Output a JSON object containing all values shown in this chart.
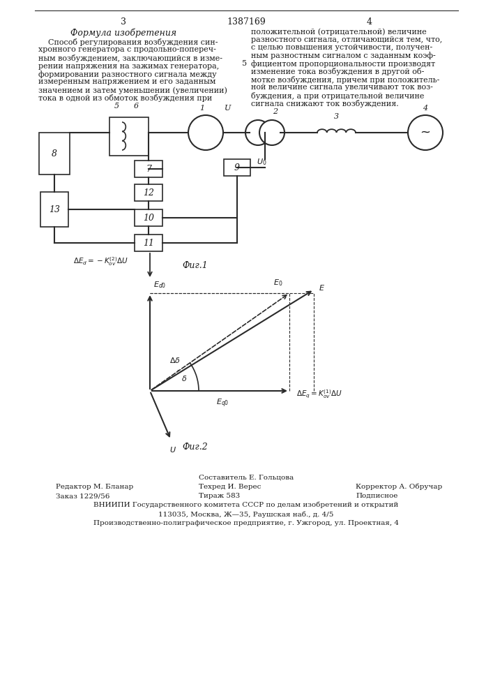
{
  "page_num_left": "3",
  "page_num_center": "1387169",
  "page_num_right": "4",
  "title_left": "Формула изобретения",
  "left_col_lines": [
    "    Способ регулирования возбуждения син-",
    "хронного генератора с продольно-попереч-",
    "ным возбуждением, заключающийся в изме-",
    "рении напряжения на зажимах генератора,",
    "формировании разностного сигнала между",
    "измеренным напряжением и его заданным",
    "значением и затем уменьшении (увеличении)",
    "тока в одной из обмоток возбуждения при"
  ],
  "right_col_lines": [
    "положительной (отрицательной) величине",
    "разностного сигнала, отличающийся тем, что,",
    "с целью повышения устойчивости, получен-",
    "ным разностным сигналом с заданным коэф-",
    "фициентом пропорциональности производят",
    "изменение тока возбуждения в другой об-",
    "мотке возбуждения, причем при положитель-",
    "ной величине сигнала увеличивают ток воз-",
    "буждения, а при отрицательной величине",
    "сигнала снижают ток возбуждения."
  ],
  "num5_line_index": 4,
  "fig1_label": "Фиг.1",
  "fig2_label": "Фиг.2",
  "footer_line1_center": "Составитель Е. Гольцова",
  "footer_line1_left": "Редактор М. Бланар",
  "footer_line1_right": "Корректор А. Обручар",
  "footer_line2_left": "Заказ 1229/56",
  "footer_line2_center": "Техред И. Верес",
  "footer_line2_right": "Подписное",
  "footer_line3_left": "Тираж 583",
  "footer_line4": "ВНИИПИ Государственного комитета СССР по делам изобретений и открытий",
  "footer_line5": "113035, Москва, Ж—35, Раушская наб., д. 4/5",
  "footer_line6": "Производственно-полиграфическое предприятие, г. Ужгород, ул. Проектная, 4",
  "bg_color": "#ffffff",
  "text_color": "#1a1a1a",
  "line_color": "#2a2a2a"
}
